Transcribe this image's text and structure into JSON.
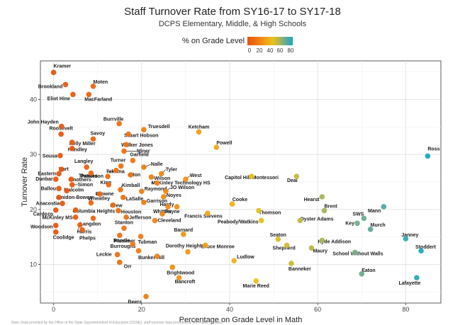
{
  "chart_data": {
    "type": "scatter",
    "title": "Staff Turnover Rate from SY16-17 to SY17-18",
    "subtitle": "DCPS Elementary, Middle, & High Schools",
    "xlabel": "Percentage on Grade Level in Math",
    "ylabel": "Turnover Rate",
    "xlim": [
      -3,
      88
    ],
    "ylim": [
      3,
      47
    ],
    "xticks": [
      0,
      20,
      40,
      60,
      80
    ],
    "yticks": [
      10,
      20,
      30,
      40
    ],
    "legend": {
      "title": "% on Grade Level",
      "ticks": [
        "0",
        "20",
        "40",
        "60",
        "80"
      ],
      "placement": "top",
      "color_low": "#e8530f",
      "color_mid": "#e6c21c",
      "color_high": "#19aab8"
    },
    "points": [
      {
        "label": "Kramer",
        "x": 0,
        "y": 44.9
      },
      {
        "label": "Brookland",
        "x": 2.7,
        "y": 42.7
      },
      {
        "label": "Moten",
        "x": 9,
        "y": 42.4
      },
      {
        "label": "Eliot Hine",
        "x": 4.4,
        "y": 40.9
      },
      {
        "label": "MacFarland",
        "x": 8,
        "y": 40.9
      },
      {
        "label": "Burrville",
        "x": 14.9,
        "y": 35.6
      },
      {
        "label": "John Hayden",
        "x": 1.8,
        "y": 35.1
      },
      {
        "label": "Truesdell",
        "x": 20.5,
        "y": 34.5
      },
      {
        "label": "Ketcham",
        "x": 33,
        "y": 34.1
      },
      {
        "label": "Roosevelt",
        "x": 1.7,
        "y": 33.7
      },
      {
        "label": "Stuart Hobson",
        "x": 17,
        "y": 33.7
      },
      {
        "label": "Savoy",
        "x": 9,
        "y": 32.8
      },
      {
        "label": "Kelly Miller",
        "x": 4.2,
        "y": 32.2
      },
      {
        "label": "Walker Jones",
        "x": 16.5,
        "y": 31.8
      },
      {
        "label": "Powell",
        "x": 37,
        "y": 31.3
      },
      {
        "label": "Handley",
        "x": 4.2,
        "y": 31.1
      },
      {
        "label": "Miner",
        "x": 16,
        "y": 30.6
      },
      {
        "label": "Sousa",
        "x": 1.5,
        "y": 29.8
      },
      {
        "label": "Ross",
        "x": 85,
        "y": 29.7
      },
      {
        "label": "Garfield",
        "x": 18,
        "y": 28.9
      },
      {
        "label": "Langley",
        "x": 7.5,
        "y": 27.7
      },
      {
        "label": "Turner",
        "x": 15.3,
        "y": 27.9
      },
      {
        "label": "Nalle",
        "x": 20.5,
        "y": 27.7
      },
      {
        "label": "Hart",
        "x": 1.8,
        "y": 27.3
      },
      {
        "label": "Takoma",
        "x": 14.2,
        "y": 27.1
      },
      {
        "label": "Eastern",
        "x": 1.2,
        "y": 26.5
      },
      {
        "label": "Thomas",
        "x": 8.5,
        "y": 26.6
      },
      {
        "label": "Tyler",
        "x": 24.5,
        "y": 26.5
      },
      {
        "label": "Aiton",
        "x": 17.5,
        "y": 26.3
      },
      {
        "label": "Patterson",
        "x": 12.3,
        "y": 26.0
      },
      {
        "label": "Wilson",
        "x": 22.2,
        "y": 25.9
      },
      {
        "label": "Capitol Hill Montessori",
        "x": 45,
        "y": 26.0
      },
      {
        "label": "Deal",
        "x": 55.2,
        "y": 26.0
      },
      {
        "label": "Dunbar",
        "x": 0.5,
        "y": 25.5
      },
      {
        "label": "Smothers",
        "x": 4,
        "y": 25.5
      },
      {
        "label": "West",
        "x": 30,
        "y": 25.5
      },
      {
        "label": "McKinley Technology HS",
        "x": 23.5,
        "y": 24.8
      },
      {
        "label": "Simon",
        "x": 4.2,
        "y": 24.5
      },
      {
        "label": "King",
        "x": 12.5,
        "y": 24.5
      },
      {
        "label": "Ballou",
        "x": 1.2,
        "y": 23.8
      },
      {
        "label": "Kimball",
        "x": 15.2,
        "y": 23.6
      },
      {
        "label": "Malcolm",
        "x": 3,
        "y": 23.4
      },
      {
        "label": "Raymond",
        "x": 20,
        "y": 23.3
      },
      {
        "label": "JO Wilson",
        "x": 25.5,
        "y": 23.3
      },
      {
        "label": "Browne",
        "x": 10.5,
        "y": 22.8
      },
      {
        "label": "Noyes",
        "x": 25,
        "y": 22.3
      },
      {
        "label": "Hearst",
        "x": 61,
        "y": 22.3
      },
      {
        "label": "Amidon-Bowen",
        "x": 1.2,
        "y": 22.2
      },
      {
        "label": "LaSalle",
        "x": 15.8,
        "y": 22.2
      },
      {
        "label": "Cooke",
        "x": 40.6,
        "y": 21.0
      },
      {
        "label": "Anacostia",
        "x": 2,
        "y": 21.1
      },
      {
        "label": "Wheatley",
        "x": 8.5,
        "y": 21.2
      },
      {
        "label": "Garrison",
        "x": 20.5,
        "y": 21.3
      },
      {
        "label": "Drew",
        "x": 13.5,
        "y": 20.8
      },
      {
        "label": "Mann",
        "x": 75,
        "y": 20.5
      },
      {
        "label": "Payne",
        "x": 26,
        "y": 20.5
      },
      {
        "label": "Hardy",
        "x": 28,
        "y": 20.5
      },
      {
        "label": "Brent",
        "x": 61.5,
        "y": 19.8
      },
      {
        "label": "Cardozo",
        "x": 0.5,
        "y": 19.9
      },
      {
        "label": "Columbia Heights",
        "x": 5,
        "y": 19.9
      },
      {
        "label": "Houston",
        "x": 14.7,
        "y": 19.8
      },
      {
        "label": "Thomson",
        "x": 46.6,
        "y": 19.8
      },
      {
        "label": "Francis Stevens",
        "x": 35,
        "y": 19.3
      },
      {
        "label": "Whittier",
        "x": 24.7,
        "y": 19.2
      },
      {
        "label": "McKinley MS",
        "x": 5,
        "y": 18.6
      },
      {
        "label": "Jefferson",
        "x": 16.5,
        "y": 18.6
      },
      {
        "label": "Langdon",
        "x": 9,
        "y": 18.4
      },
      {
        "label": "SWS",
        "x": 70.5,
        "y": 18.4
      },
      {
        "label": "Cleveland",
        "x": 23,
        "y": 18.0
      },
      {
        "label": "Oyster Adams",
        "x": 56,
        "y": 18.0
      },
      {
        "label": "Peabody/Watkins",
        "x": 47.2,
        "y": 18.0
      },
      {
        "label": "Key",
        "x": 69,
        "y": 17.5
      },
      {
        "label": "Woodson",
        "x": 0.5,
        "y": 17.1
      },
      {
        "label": "Harris",
        "x": 6,
        "y": 17.2
      },
      {
        "label": "Stanton",
        "x": 16,
        "y": 16.6
      },
      {
        "label": "Murch",
        "x": 72,
        "y": 16.4
      },
      {
        "label": "Coolidge",
        "x": 0.5,
        "y": 15.9
      },
      {
        "label": "Phelps",
        "x": 6.5,
        "y": 16.3
      },
      {
        "label": "Barnard",
        "x": 29.5,
        "y": 15.5
      },
      {
        "label": "Plummer",
        "x": 15,
        "y": 15.3
      },
      {
        "label": "Tubman",
        "x": 19.8,
        "y": 15.1
      },
      {
        "label": "Seaton",
        "x": 51,
        "y": 14.6
      },
      {
        "label": "Janney",
        "x": 80,
        "y": 14.7
      },
      {
        "label": "Hyde Addison",
        "x": 61,
        "y": 14.4
      },
      {
        "label": "Bruce Monroe",
        "x": 34.5,
        "y": 13.5
      },
      {
        "label": "Shepherd",
        "x": 53,
        "y": 13.5
      },
      {
        "label": "Randle",
        "x": 18,
        "y": 13.7
      },
      {
        "label": "Stoddert",
        "x": 83.5,
        "y": 12.5
      },
      {
        "label": "Maury",
        "x": 58.6,
        "y": 13.0
      },
      {
        "label": "Burroughs",
        "x": 19.3,
        "y": 12.5
      },
      {
        "label": "Dorothy Height",
        "x": 30.5,
        "y": 12.3
      },
      {
        "label": "School Without Walls",
        "x": 68.5,
        "y": 12.2
      },
      {
        "label": "Leckie",
        "x": 14.5,
        "y": 11.8
      },
      {
        "label": "Bunker Hill",
        "x": 23.5,
        "y": 11.5
      },
      {
        "label": "Ludlow",
        "x": 41,
        "y": 10.7
      },
      {
        "label": "Orr",
        "x": 15,
        "y": 10.4
      },
      {
        "label": "Banneker",
        "x": 54,
        "y": 10.2
      },
      {
        "label": "Brightwood",
        "x": 27,
        "y": 9.5
      },
      {
        "label": "Eaton",
        "x": 70,
        "y": 8.3
      },
      {
        "label": "Bancroft",
        "x": 28.5,
        "y": 7.6
      },
      {
        "label": "Lafayette",
        "x": 82.5,
        "y": 7.6
      },
      {
        "label": "Marie Reed",
        "x": 46,
        "y": 7.0
      },
      {
        "label": "Beers",
        "x": 21,
        "y": 4.2
      }
    ]
  },
  "footnote": "Note: Data provided by the Office of the State Superintendent of Education (OSSE); staff turnover data provided by DC Public Schools."
}
